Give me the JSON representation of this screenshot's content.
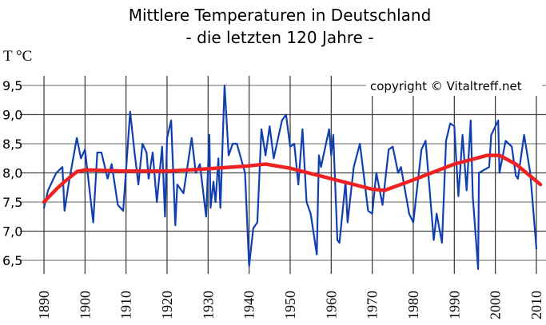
{
  "chart_data": {
    "type": "line",
    "title": "Mittlere Temperaturen in Deutschland",
    "subtitle": "- die letzten 120 Jahre -",
    "ylabel": "T °C",
    "xlabel": "",
    "annotation": "copyright © Vitaltreff.net",
    "xlim": [
      1890,
      2011
    ],
    "ylim": [
      6.24,
      9.66
    ],
    "grid": true,
    "x_ticks": [
      "1890",
      "1900",
      "1910",
      "1920",
      "1930",
      "1940",
      "1950",
      "1960",
      "1970",
      "1980",
      "1990",
      "2000",
      "2010"
    ],
    "y_ticks": [
      "9,5",
      "9,0",
      "8,5",
      "8,0",
      "7,5",
      "7,0",
      "6,5"
    ],
    "series": [
      {
        "color": "#1040b0",
        "x": [
          1890,
          1891,
          1893,
          1894.5,
          1895,
          1896,
          1897,
          1898,
          1899,
          1900,
          1902,
          1903,
          1904,
          1905.5,
          1906.5,
          1908,
          1909.3,
          1911,
          1912,
          1913,
          1914,
          1915,
          1915.5,
          1916.5,
          1917.5,
          1918.8,
          1919.5,
          1920,
          1921,
          1922,
          1922.5,
          1924,
          1926,
          1927,
          1928,
          1929.5,
          1930.3,
          1930.6,
          1931.3,
          1931.8,
          1932.5,
          1933,
          1934,
          1935,
          1936,
          1937,
          1939,
          1940,
          1941,
          1942,
          1943,
          1944,
          1945,
          1946,
          1948,
          1949,
          1950,
          1951,
          1952,
          1953,
          1954,
          1955,
          1956.5,
          1957,
          1957.5,
          1959.5,
          1960,
          1960.5,
          1961.5,
          1962,
          1963.5,
          1964,
          1965.5,
          1967,
          1969,
          1970,
          1971,
          1972.5,
          1974,
          1975,
          1976.3,
          1977,
          1979,
          1980,
          1982,
          1983,
          1985,
          1985.7,
          1987,
          1988,
          1989,
          1990,
          1991,
          1992,
          1993,
          1994,
          1994.5,
          1995.8,
          1996,
          1998.5,
          1999,
          2000.7,
          2001,
          2002.5,
          2004,
          2005,
          2005.5,
          2007,
          2008.5,
          2010
        ],
        "y": [
          7.4,
          7.7,
          8.0,
          8.1,
          7.35,
          7.8,
          8.2,
          8.6,
          8.25,
          8.4,
          7.15,
          8.35,
          8.35,
          7.9,
          8.15,
          7.45,
          7.35,
          9.05,
          8.4,
          7.8,
          8.5,
          8.35,
          7.9,
          8.35,
          7.5,
          8.45,
          7.25,
          8.6,
          8.9,
          7.1,
          7.8,
          7.65,
          8.6,
          8.0,
          8.15,
          7.25,
          8.65,
          7.4,
          7.85,
          7.5,
          8.25,
          7.4,
          9.5,
          8.3,
          8.5,
          8.5,
          8.0,
          6.4,
          7.05,
          7.15,
          8.75,
          8.3,
          8.8,
          8.25,
          8.9,
          9.0,
          8.45,
          8.5,
          7.8,
          8.75,
          7.5,
          7.3,
          6.6,
          8.3,
          8.1,
          8.75,
          8.3,
          8.65,
          6.85,
          6.8,
          7.85,
          7.15,
          8.1,
          8.5,
          7.35,
          7.3,
          8.0,
          7.45,
          8.4,
          8.45,
          8.0,
          8.1,
          7.3,
          7.15,
          8.4,
          8.55,
          6.85,
          7.3,
          6.8,
          8.55,
          8.85,
          8.8,
          7.6,
          8.65,
          7.7,
          8.9,
          7.6,
          6.35,
          8.0,
          8.1,
          8.65,
          8.9,
          8.0,
          8.55,
          8.45,
          7.95,
          7.9,
          8.65,
          8.0,
          6.7
        ]
      },
      {
        "color": "#ee2222",
        "x": [
          1890,
          1893,
          1895,
          1898,
          1900,
          1910,
          1920,
          1930,
          1940,
          1944,
          1950,
          1960,
          1970,
          1973,
          1980,
          1990,
          1998,
          2001,
          2005,
          2011
        ],
        "y": [
          7.5,
          7.72,
          7.85,
          8.02,
          8.05,
          8.03,
          8.03,
          8.07,
          8.12,
          8.15,
          8.08,
          7.9,
          7.72,
          7.7,
          7.88,
          8.15,
          8.3,
          8.3,
          8.15,
          7.8
        ]
      }
    ]
  }
}
